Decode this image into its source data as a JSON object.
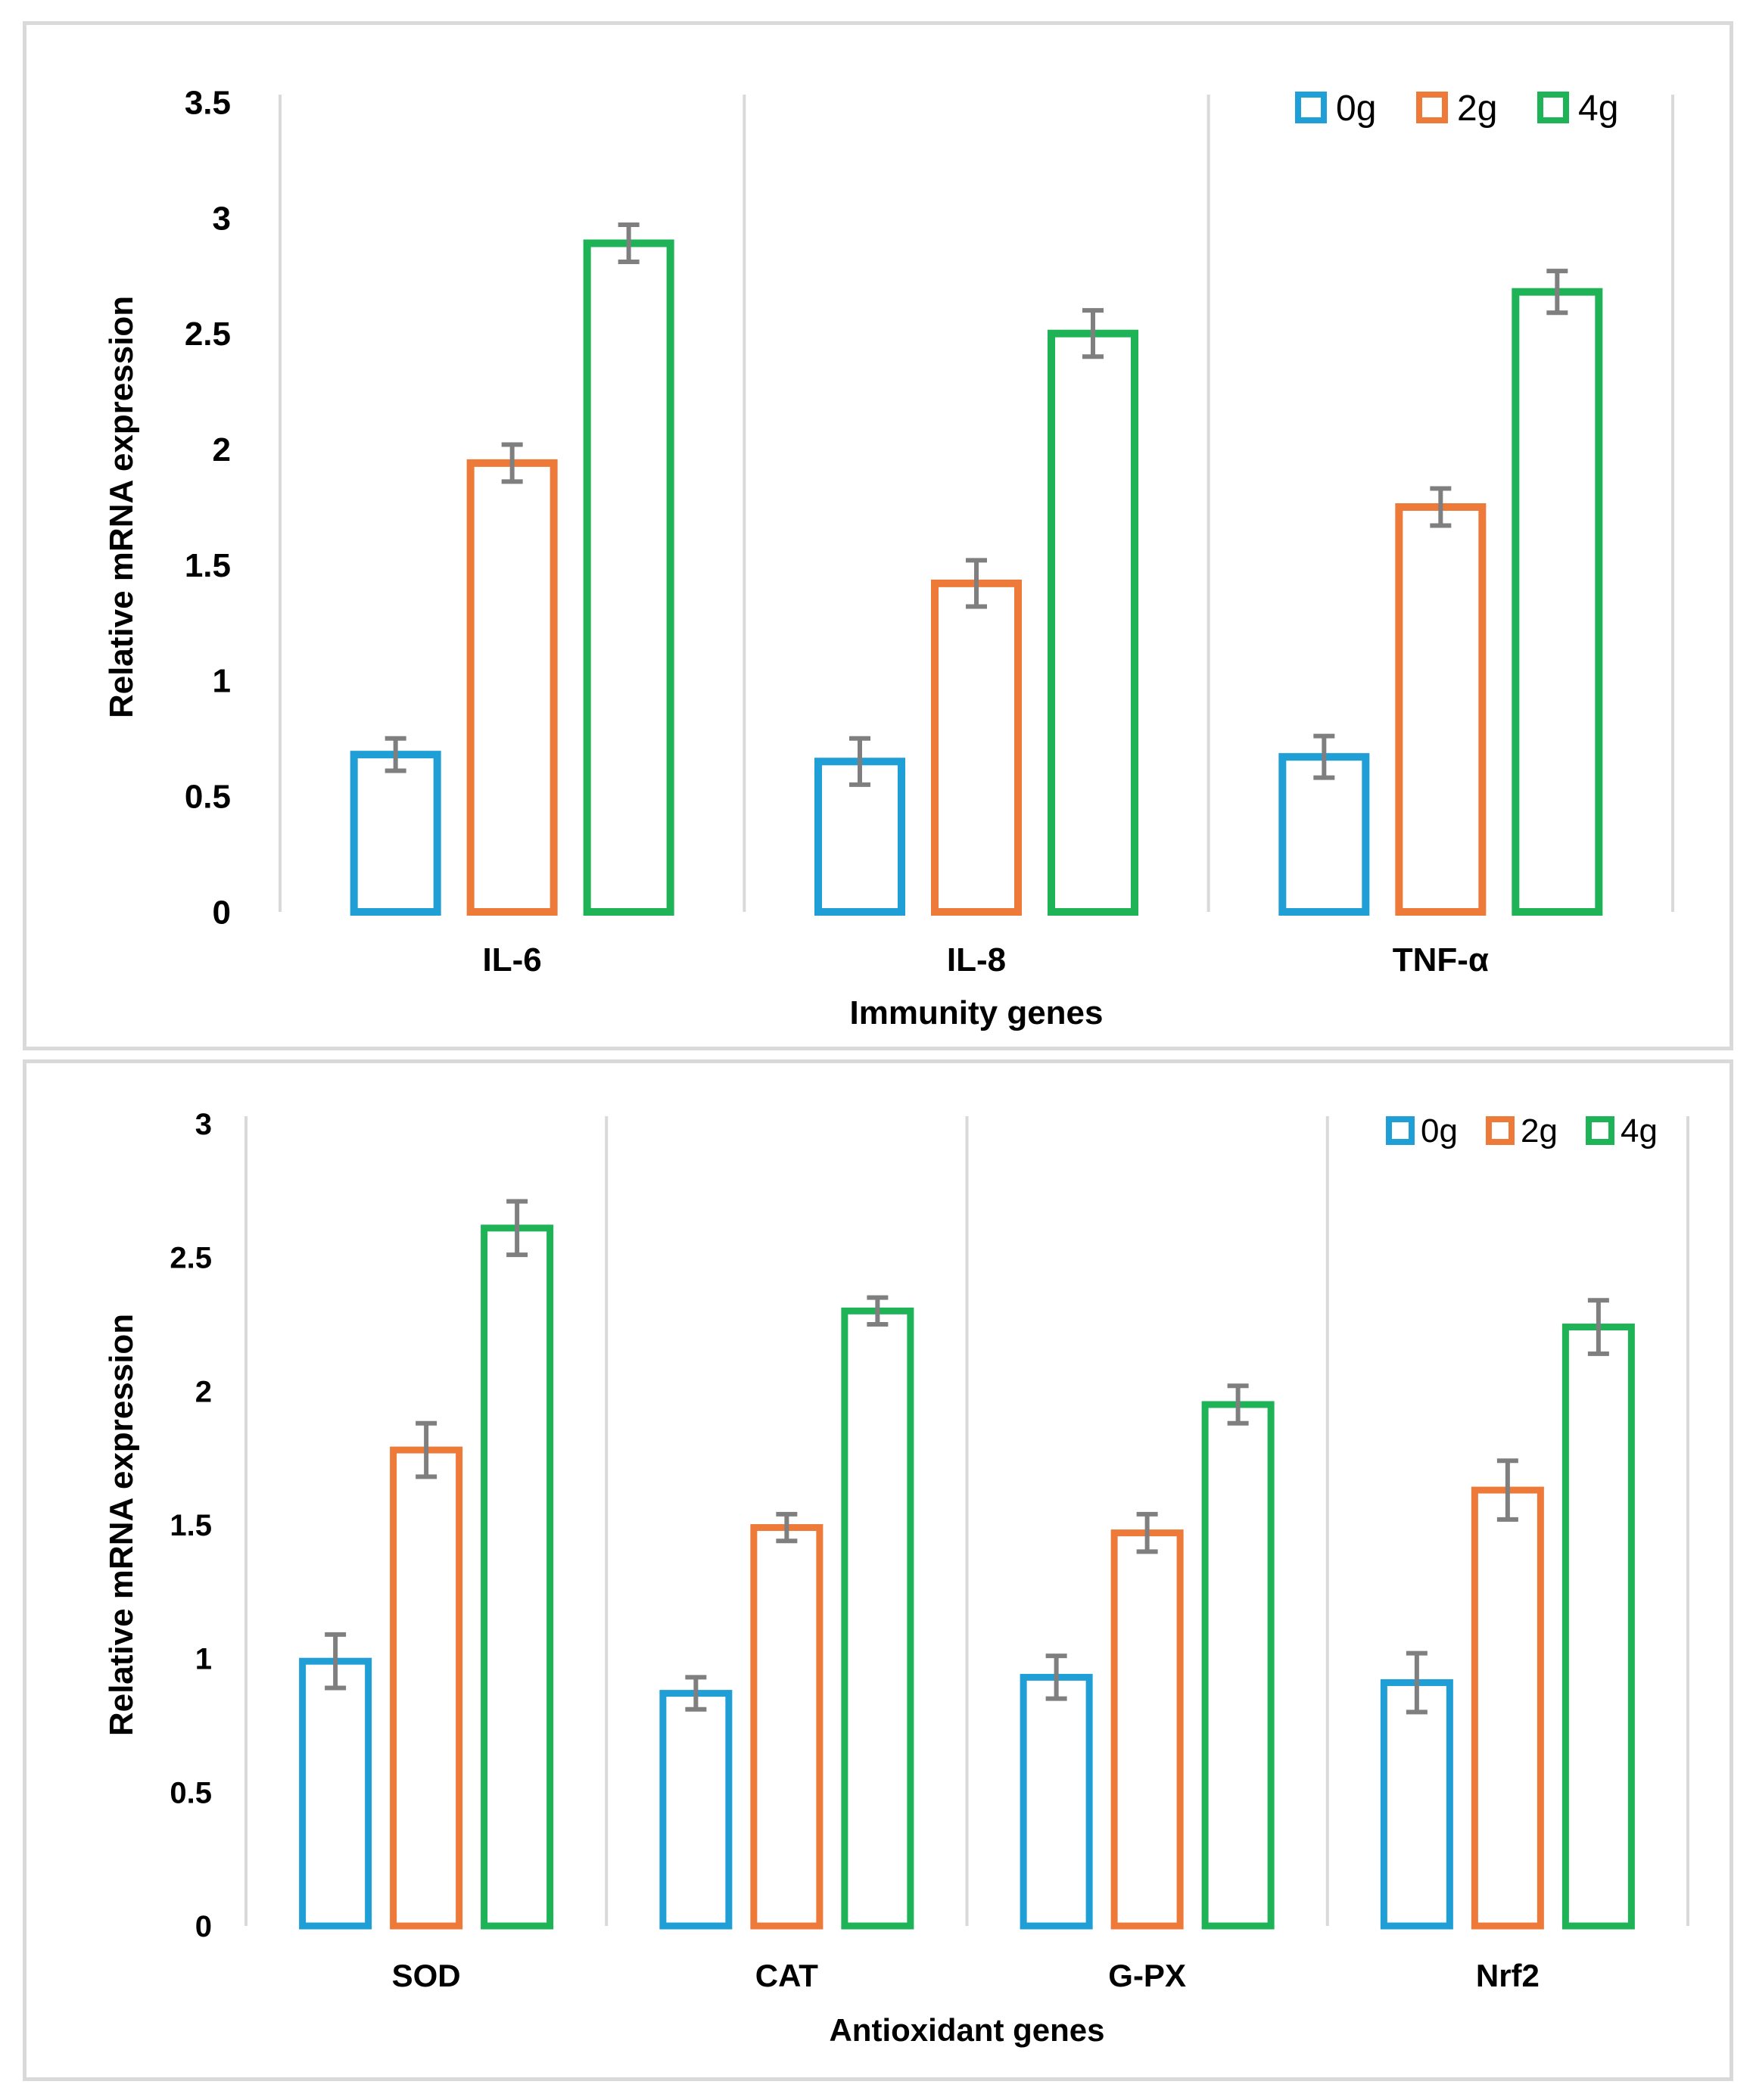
{
  "chart_data": [
    {
      "type": "bar",
      "title": "",
      "xlabel": "Immunity genes",
      "ylabel": "Relative mRNA expression",
      "categories": [
        "IL-6",
        "IL-8",
        "TNF-α"
      ],
      "ylim": [
        0,
        3.5
      ],
      "yticks": [
        "0",
        "0.5",
        "1",
        "1.5",
        "2",
        "2.5",
        "3",
        "3.5"
      ],
      "legend_position": "top-right",
      "series": [
        {
          "name": "0g",
          "color": "#1f9fd6",
          "values": [
            0.68,
            0.65,
            0.67
          ],
          "errors": [
            0.07,
            0.1,
            0.09
          ]
        },
        {
          "name": "2g",
          "color": "#ee7a3a",
          "values": [
            1.94,
            1.42,
            1.75
          ],
          "errors": [
            0.08,
            0.1,
            0.08
          ]
        },
        {
          "name": "4g",
          "color": "#1db356",
          "values": [
            2.89,
            2.5,
            2.68
          ],
          "errors": [
            0.08,
            0.1,
            0.09
          ]
        }
      ]
    },
    {
      "type": "bar",
      "title": "",
      "xlabel": "Antioxidant genes",
      "ylabel": "Relative mRNA expression",
      "categories": [
        "SOD",
        "CAT",
        "G-PX",
        "Nrf2"
      ],
      "ylim": [
        0,
        3
      ],
      "yticks": [
        "0",
        "0.5",
        "1",
        "1.5",
        "2",
        "2.5",
        "3"
      ],
      "legend_position": "top-right",
      "series": [
        {
          "name": "0g",
          "color": "#1f9fd6",
          "values": [
            0.99,
            0.87,
            0.93,
            0.91
          ],
          "errors": [
            0.1,
            0.06,
            0.08,
            0.11
          ]
        },
        {
          "name": "2g",
          "color": "#ee7a3a",
          "values": [
            1.78,
            1.49,
            1.47,
            1.63
          ],
          "errors": [
            0.1,
            0.05,
            0.07,
            0.11
          ]
        },
        {
          "name": "4g",
          "color": "#1db356",
          "values": [
            2.61,
            2.3,
            1.95,
            2.24
          ],
          "errors": [
            0.1,
            0.05,
            0.07,
            0.1
          ]
        }
      ]
    }
  ]
}
